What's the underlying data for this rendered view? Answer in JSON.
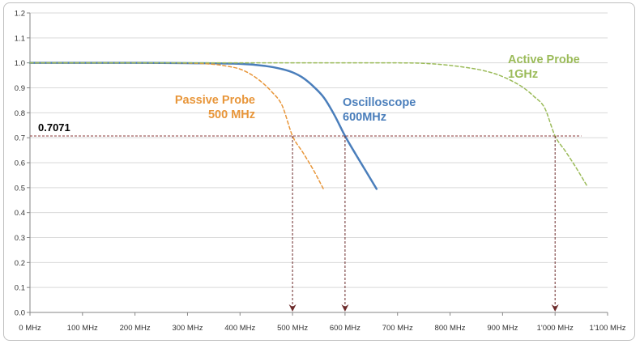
{
  "chart_data": {
    "type": "line",
    "x_unit": "MHz",
    "xlim": [
      0,
      1100
    ],
    "ylim": [
      0.0,
      1.2
    ],
    "x_ticks": [
      0,
      100,
      200,
      300,
      400,
      500,
      600,
      700,
      800,
      900,
      1000,
      1100
    ],
    "x_tick_labels": [
      "0 MHz",
      "100 MHz",
      "200 MHz",
      "300 MHz",
      "400 MHz",
      "500 MHz",
      "600 MHz",
      "700 MHz",
      "800 MHz",
      "900 MHz",
      "1'000 MHz",
      "1'100 MHz"
    ],
    "y_ticks": [
      0.0,
      0.1,
      0.2,
      0.3,
      0.4,
      0.5,
      0.6,
      0.7,
      0.8,
      0.9,
      1.0,
      1.1,
      1.2
    ],
    "y_tick_labels": [
      "0.0",
      "0.1",
      "0.2",
      "0.3",
      "0.4",
      "0.5",
      "0.6",
      "0.7",
      "0.8",
      "0.9",
      "1.0",
      "1.1",
      "1.2"
    ],
    "grid": "horizontal",
    "series": [
      {
        "name": "Oscilloscope 600MHz",
        "label_lines": [
          "Oscilloscope",
          "600MHz"
        ],
        "color": "#4a7ebb",
        "style": "solid",
        "x": [
          0,
          100,
          200,
          300,
          400,
          450,
          480,
          500,
          520,
          540,
          560,
          580,
          600,
          620,
          640,
          660
        ],
        "y": [
          1.0,
          1.0,
          1.0,
          0.999,
          0.996,
          0.987,
          0.975,
          0.962,
          0.94,
          0.905,
          0.86,
          0.79,
          0.707,
          0.635,
          0.565,
          0.495
        ]
      },
      {
        "name": "Passive Probe 500 MHz",
        "label_lines": [
          "Passive Probe",
          "500 MHz"
        ],
        "color": "#e8963a",
        "style": "dashed",
        "x": [
          0,
          100,
          200,
          300,
          350,
          380,
          400,
          420,
          440,
          460,
          480,
          500,
          520,
          540,
          560
        ],
        "y": [
          1.0,
          1.0,
          1.0,
          0.999,
          0.994,
          0.985,
          0.975,
          0.955,
          0.925,
          0.885,
          0.83,
          0.707,
          0.64,
          0.57,
          0.49
        ]
      },
      {
        "name": "Active Probe 1GHz",
        "label_lines": [
          "Active Probe",
          "1GHz"
        ],
        "color": "#9bbb59",
        "style": "dashed",
        "x": [
          0,
          200,
          400,
          600,
          700,
          750,
          800,
          850,
          880,
          900,
          920,
          940,
          960,
          980,
          1000,
          1020,
          1040,
          1060
        ],
        "y": [
          1.0,
          1.0,
          1.0,
          1.0,
          1.0,
          0.998,
          0.99,
          0.975,
          0.96,
          0.945,
          0.925,
          0.9,
          0.865,
          0.82,
          0.707,
          0.645,
          0.58,
          0.51
        ]
      }
    ],
    "reference_line": {
      "label": "0.7071",
      "y": 0.7071,
      "x_end": 1050,
      "color": "#8b3a3a"
    },
    "markers": [
      {
        "x": 500,
        "color": "#6b2a2a"
      },
      {
        "x": 600,
        "color": "#6b2a2a"
      },
      {
        "x": 1000,
        "color": "#6b2a2a"
      }
    ],
    "title": "",
    "xlabel": "",
    "ylabel": ""
  }
}
